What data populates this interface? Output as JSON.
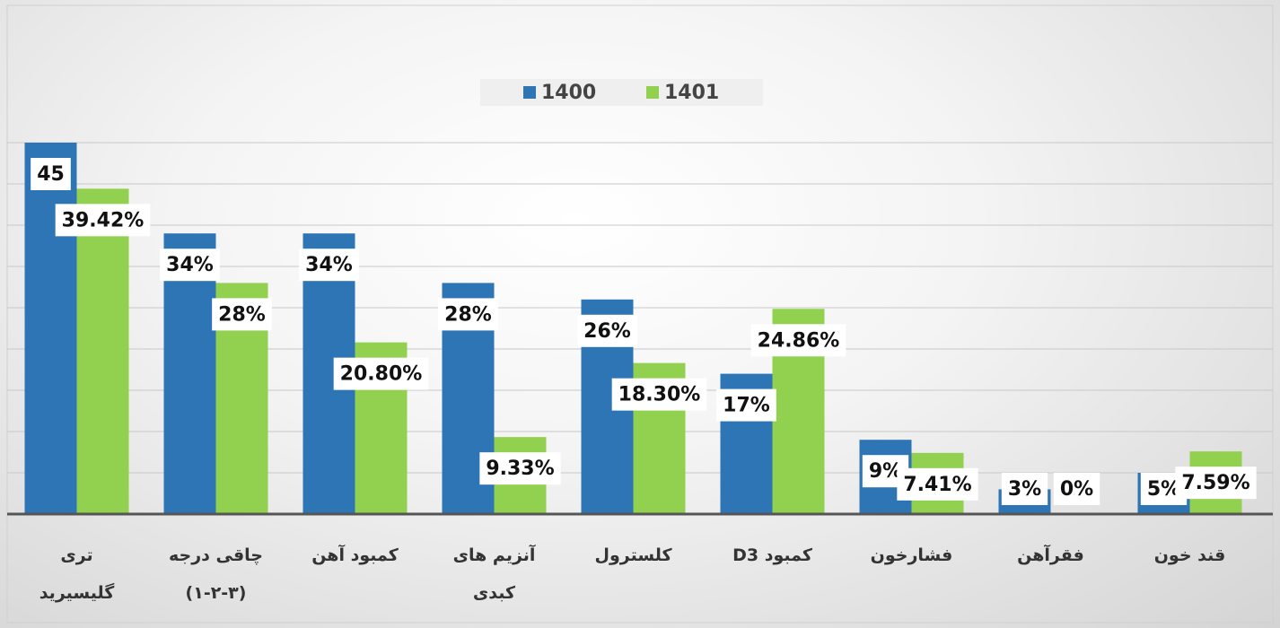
{
  "chart_data": {
    "type": "bar",
    "categories": [
      "تری\nگلیسیرید",
      "چاقی درجه\n(۱-۲-۳)",
      "کمبود آهن",
      "آنزیم های\nکبدی",
      "کلسترول",
      "کمبود D3",
      "فشارخون",
      "فقرآهن",
      "قند خون"
    ],
    "series": [
      {
        "name": "1400",
        "color": "#2e75b6",
        "values": [
          45,
          34,
          34,
          28,
          26,
          17,
          9,
          3,
          5
        ],
        "value_labels": [
          "45",
          "34%",
          "34%",
          "28%",
          "26%",
          "17%",
          "9%",
          "3%",
          "5%"
        ]
      },
      {
        "name": "1401",
        "color": "#92d050",
        "values": [
          39.42,
          28,
          20.8,
          9.33,
          18.3,
          24.86,
          7.41,
          0,
          7.59
        ],
        "value_labels": [
          "39.42%",
          "28%",
          "20.80%",
          "9.33%",
          "18.30%",
          "24.86%",
          "7.41%",
          "0%",
          "7.59%"
        ]
      }
    ],
    "ylim": [
      0,
      45
    ],
    "yticks": [
      0,
      5,
      10,
      15,
      20,
      25,
      30,
      35,
      40,
      45
    ],
    "grid": true
  }
}
